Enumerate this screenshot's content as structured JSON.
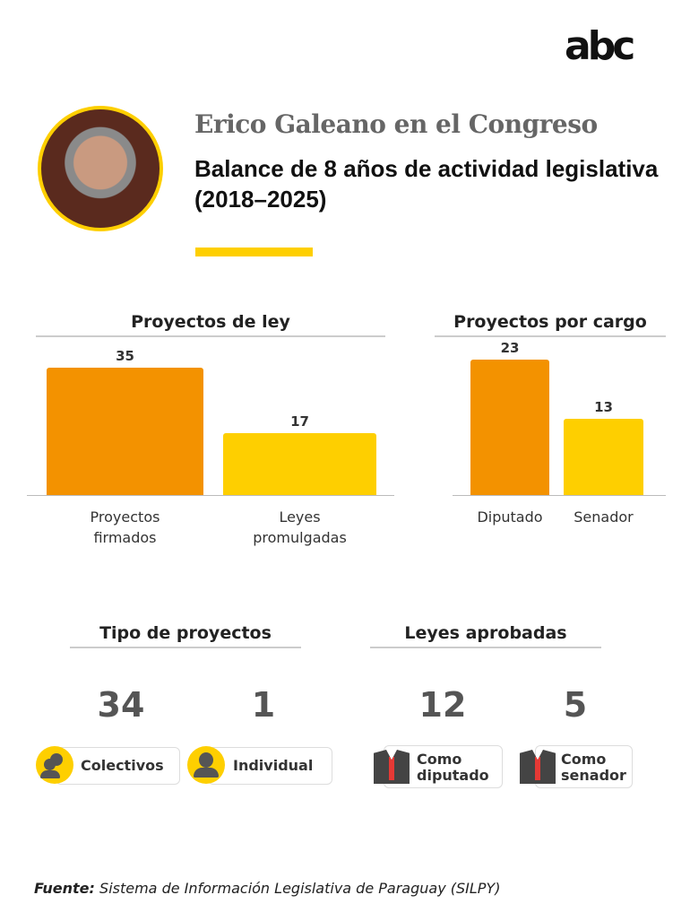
{
  "brand": {
    "logo": "abc"
  },
  "header": {
    "kicker": "Erico Galeano en el Congreso",
    "title": "Balance de 8 años de actividad legislativa (2018–2025)"
  },
  "colors": {
    "orange": "#f39200",
    "yellow": "#fecf00"
  },
  "chart_data": [
    {
      "type": "bar",
      "title": "Proyectos de ley",
      "categories": [
        "Proyectos firmados",
        "Leyes promulgadas"
      ],
      "values": [
        35,
        17
      ],
      "colors": [
        "#f39200",
        "#fecf00"
      ],
      "grid": false
    },
    {
      "type": "bar",
      "title": "Proyectos por cargo",
      "categories": [
        "Diputado",
        "Senador"
      ],
      "values": [
        23,
        13
      ],
      "colors": [
        "#f39200",
        "#fecf00"
      ],
      "grid": false
    }
  ],
  "tipo": {
    "title": "Tipo de proyectos",
    "items": [
      {
        "value": "34",
        "label": "Colectivos",
        "icon": "group-icon"
      },
      {
        "value": "1",
        "label": "Individual",
        "icon": "person-icon"
      }
    ]
  },
  "leyes": {
    "title": "Leyes aprobadas",
    "items": [
      {
        "value": "12",
        "label": "Como diputado",
        "icon": "suit-icon"
      },
      {
        "value": "5",
        "label": "Como senador",
        "icon": "suit-icon"
      }
    ]
  },
  "source": {
    "label": "Fuente:",
    "text": "Sistema de Información Legislativa de Paraguay (SILPY)"
  }
}
